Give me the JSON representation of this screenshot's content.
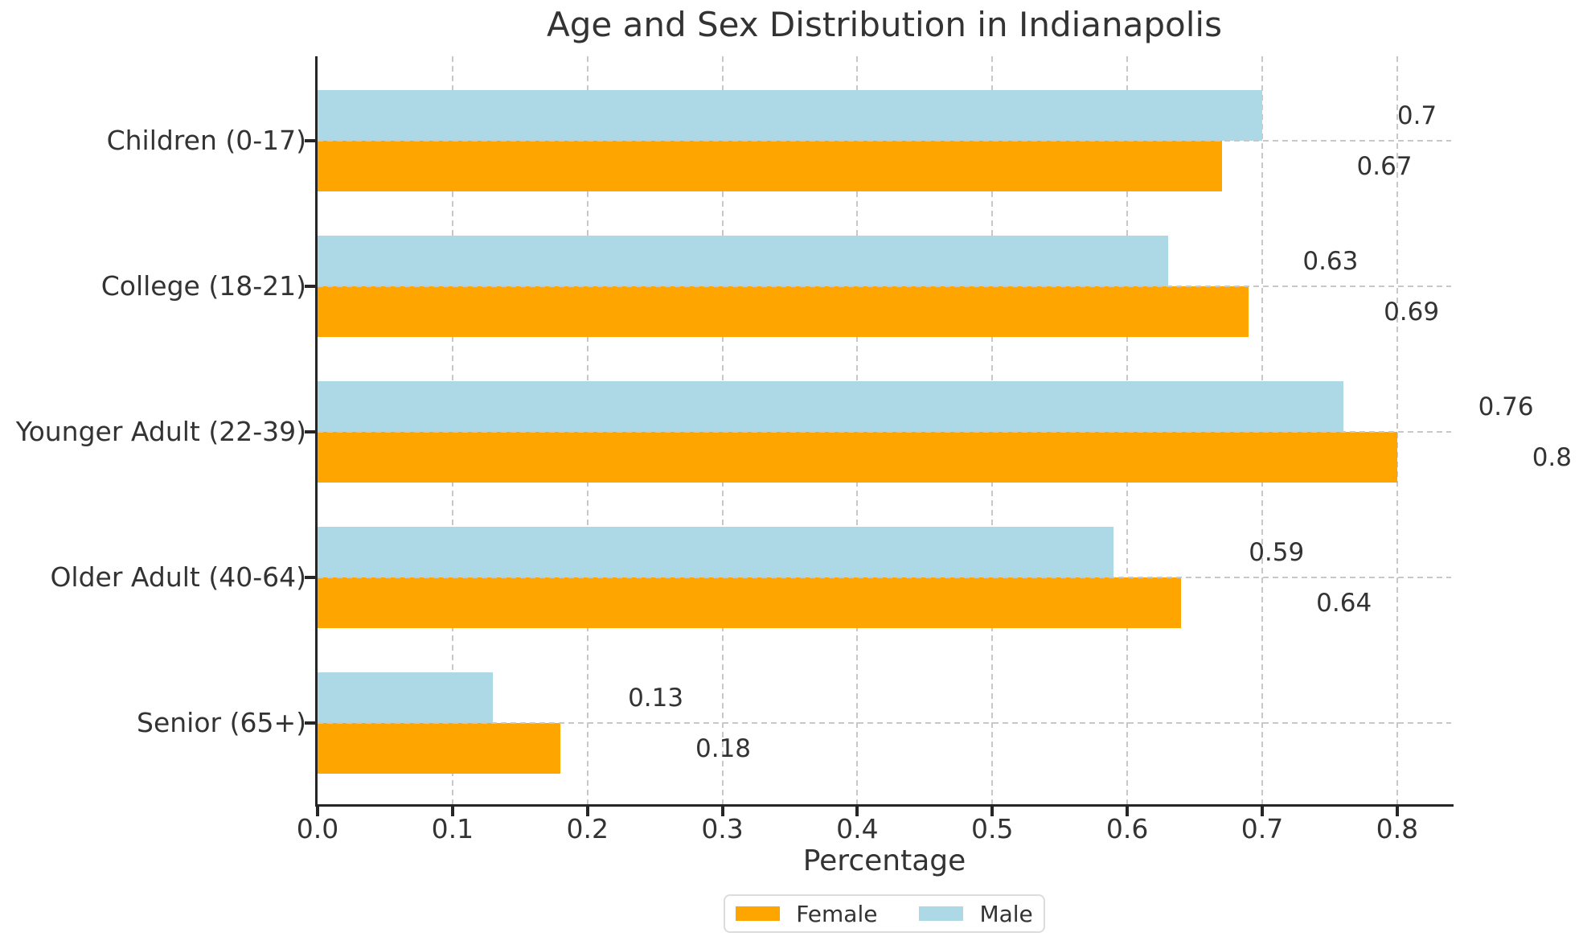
{
  "chart_data": {
    "type": "bar",
    "orientation": "horizontal",
    "title": "Age and Sex Distribution in Indianapolis",
    "xlabel": "Percentage",
    "categories": [
      "Children (0-17)",
      "College (18-21)",
      "Younger Adult (22-39)",
      "Older Adult (40-64)",
      "Senior (65+)"
    ],
    "series": [
      {
        "name": "Male",
        "color": "#ADD8E6",
        "values": [
          0.7,
          0.63,
          0.76,
          0.59,
          0.13
        ],
        "labels": [
          "0.7",
          "0.63",
          "0.76",
          "0.59",
          "0.13"
        ]
      },
      {
        "name": "Female",
        "color": "#FFA500",
        "values": [
          0.67,
          0.69,
          0.8,
          0.64,
          0.18
        ],
        "labels": [
          "0.67",
          "0.69",
          "0.8",
          "0.64",
          "0.18"
        ]
      }
    ],
    "bar_order_top_to_bottom": [
      "Male",
      "Female"
    ],
    "xlim": [
      0,
      0.84
    ],
    "xticks": {
      "values": [
        0.0,
        0.1,
        0.2,
        0.3,
        0.4,
        0.5,
        0.6,
        0.7,
        0.8
      ],
      "labels": [
        "0.0",
        "0.1",
        "0.2",
        "0.3",
        "0.4",
        "0.5",
        "0.6",
        "0.7",
        "0.8"
      ]
    },
    "grid": true,
    "grid_style": "dashed",
    "value_label_offset": 0.1,
    "legend": {
      "position": "bottom-center",
      "items": [
        {
          "label": "Female",
          "color": "#FFA500"
        },
        {
          "label": "Male",
          "color": "#ADD8E6"
        }
      ]
    },
    "colors": {
      "text": "#333333",
      "spine": "#262626",
      "grid": "#c8c8c8",
      "background": "#ffffff"
    }
  }
}
